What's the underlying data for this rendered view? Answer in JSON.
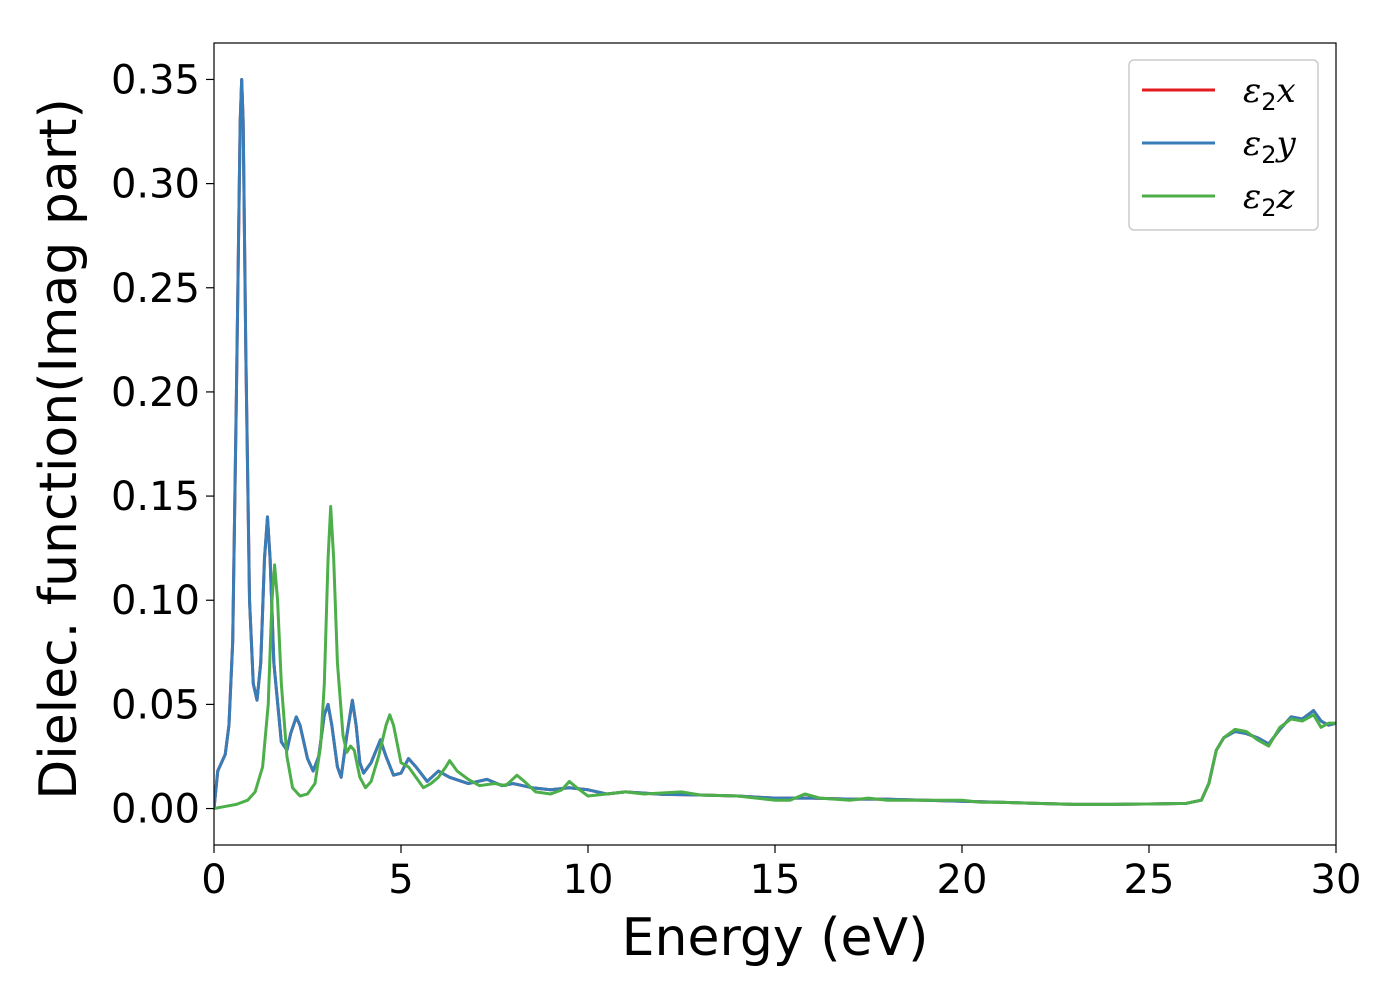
{
  "chart_data": {
    "type": "line",
    "title": "",
    "xlabel": "Energy (eV)",
    "ylabel": "Dielec. function(Imag part)",
    "xlim": [
      0,
      30
    ],
    "ylim": [
      -0.0175,
      0.3675
    ],
    "xticks": [
      0,
      5,
      10,
      15,
      20,
      25,
      30
    ],
    "xtick_labels": [
      "0",
      "5",
      "10",
      "15",
      "20",
      "25",
      "30"
    ],
    "yticks": [
      0.0,
      0.05,
      0.1,
      0.15,
      0.2,
      0.25,
      0.3,
      0.35
    ],
    "ytick_labels": [
      "0.00",
      "0.05",
      "0.10",
      "0.15",
      "0.20",
      "0.25",
      "0.30",
      "0.35"
    ],
    "grid": false,
    "legend_position": "top-right",
    "series": [
      {
        "name_symbol": "ε",
        "name_sub": "2",
        "name_suffix": "x",
        "color": "#e41a1c",
        "points": [
          [
            0,
            0.0
          ],
          [
            0.1,
            0.018
          ],
          [
            0.2,
            0.022
          ],
          [
            0.3,
            0.026
          ],
          [
            0.4,
            0.04
          ],
          [
            0.5,
            0.08
          ],
          [
            0.6,
            0.2
          ],
          [
            0.7,
            0.33
          ],
          [
            0.74,
            0.35
          ],
          [
            0.78,
            0.33
          ],
          [
            0.85,
            0.22
          ],
          [
            0.95,
            0.1
          ],
          [
            1.05,
            0.06
          ],
          [
            1.15,
            0.052
          ],
          [
            1.25,
            0.07
          ],
          [
            1.35,
            0.12
          ],
          [
            1.43,
            0.14
          ],
          [
            1.5,
            0.12
          ],
          [
            1.6,
            0.07
          ],
          [
            1.8,
            0.032
          ],
          [
            1.95,
            0.028
          ],
          [
            2.05,
            0.036
          ],
          [
            2.2,
            0.044
          ],
          [
            2.3,
            0.04
          ],
          [
            2.5,
            0.024
          ],
          [
            2.65,
            0.018
          ],
          [
            2.8,
            0.025
          ],
          [
            2.95,
            0.045
          ],
          [
            3.05,
            0.05
          ],
          [
            3.15,
            0.04
          ],
          [
            3.3,
            0.02
          ],
          [
            3.4,
            0.015
          ],
          [
            3.55,
            0.035
          ],
          [
            3.7,
            0.052
          ],
          [
            3.8,
            0.04
          ],
          [
            3.9,
            0.022
          ],
          [
            4.0,
            0.017
          ],
          [
            4.2,
            0.022
          ],
          [
            4.45,
            0.033
          ],
          [
            4.6,
            0.025
          ],
          [
            4.8,
            0.016
          ],
          [
            5.0,
            0.017
          ],
          [
            5.2,
            0.024
          ],
          [
            5.4,
            0.02
          ],
          [
            5.7,
            0.013
          ],
          [
            6.0,
            0.018
          ],
          [
            6.3,
            0.015
          ],
          [
            6.8,
            0.012
          ],
          [
            7.3,
            0.014
          ],
          [
            7.7,
            0.011
          ],
          [
            8.0,
            0.012
          ],
          [
            8.5,
            0.01
          ],
          [
            9.0,
            0.009
          ],
          [
            9.5,
            0.01
          ],
          [
            10.0,
            0.009
          ],
          [
            10.5,
            0.007
          ],
          [
            11,
            0.008
          ],
          [
            12,
            0.0068
          ],
          [
            13,
            0.0065
          ],
          [
            14,
            0.006
          ],
          [
            15,
            0.005
          ],
          [
            16,
            0.005
          ],
          [
            17,
            0.0045
          ],
          [
            18,
            0.0045
          ],
          [
            19,
            0.004
          ],
          [
            20,
            0.0035
          ],
          [
            21,
            0.003
          ],
          [
            22,
            0.0025
          ],
          [
            23,
            0.002
          ],
          [
            24,
            0.002
          ],
          [
            25,
            0.0022
          ],
          [
            26,
            0.0025
          ],
          [
            26.4,
            0.004
          ],
          [
            26.6,
            0.012
          ],
          [
            26.8,
            0.028
          ],
          [
            27,
            0.034
          ],
          [
            27.3,
            0.037
          ],
          [
            27.6,
            0.036
          ],
          [
            27.9,
            0.034
          ],
          [
            28.2,
            0.031
          ],
          [
            28.5,
            0.038
          ],
          [
            28.8,
            0.044
          ],
          [
            29.1,
            0.043
          ],
          [
            29.4,
            0.047
          ],
          [
            29.6,
            0.042
          ],
          [
            29.8,
            0.04
          ],
          [
            30,
            0.041
          ]
        ]
      },
      {
        "name_symbol": "ε",
        "name_sub": "2",
        "name_suffix": "y",
        "color": "#377eb8",
        "points": [
          [
            0,
            0.0
          ],
          [
            0.1,
            0.018
          ],
          [
            0.2,
            0.022
          ],
          [
            0.3,
            0.026
          ],
          [
            0.4,
            0.04
          ],
          [
            0.5,
            0.08
          ],
          [
            0.6,
            0.2
          ],
          [
            0.7,
            0.33
          ],
          [
            0.74,
            0.35
          ],
          [
            0.78,
            0.33
          ],
          [
            0.85,
            0.22
          ],
          [
            0.95,
            0.1
          ],
          [
            1.05,
            0.06
          ],
          [
            1.15,
            0.052
          ],
          [
            1.25,
            0.07
          ],
          [
            1.35,
            0.12
          ],
          [
            1.43,
            0.14
          ],
          [
            1.5,
            0.12
          ],
          [
            1.6,
            0.07
          ],
          [
            1.8,
            0.032
          ],
          [
            1.95,
            0.028
          ],
          [
            2.05,
            0.036
          ],
          [
            2.2,
            0.044
          ],
          [
            2.3,
            0.04
          ],
          [
            2.5,
            0.024
          ],
          [
            2.65,
            0.018
          ],
          [
            2.8,
            0.025
          ],
          [
            2.95,
            0.045
          ],
          [
            3.05,
            0.05
          ],
          [
            3.15,
            0.04
          ],
          [
            3.3,
            0.02
          ],
          [
            3.4,
            0.015
          ],
          [
            3.55,
            0.035
          ],
          [
            3.7,
            0.052
          ],
          [
            3.8,
            0.04
          ],
          [
            3.9,
            0.022
          ],
          [
            4.0,
            0.017
          ],
          [
            4.2,
            0.022
          ],
          [
            4.45,
            0.033
          ],
          [
            4.6,
            0.025
          ],
          [
            4.8,
            0.016
          ],
          [
            5.0,
            0.017
          ],
          [
            5.2,
            0.024
          ],
          [
            5.4,
            0.02
          ],
          [
            5.7,
            0.013
          ],
          [
            6.0,
            0.018
          ],
          [
            6.3,
            0.015
          ],
          [
            6.8,
            0.012
          ],
          [
            7.3,
            0.014
          ],
          [
            7.7,
            0.011
          ],
          [
            8.0,
            0.012
          ],
          [
            8.5,
            0.01
          ],
          [
            9.0,
            0.009
          ],
          [
            9.5,
            0.01
          ],
          [
            10.0,
            0.009
          ],
          [
            10.5,
            0.007
          ],
          [
            11,
            0.008
          ],
          [
            12,
            0.0068
          ],
          [
            13,
            0.0065
          ],
          [
            14,
            0.006
          ],
          [
            15,
            0.005
          ],
          [
            16,
            0.005
          ],
          [
            17,
            0.0045
          ],
          [
            18,
            0.0045
          ],
          [
            19,
            0.004
          ],
          [
            20,
            0.0035
          ],
          [
            21,
            0.003
          ],
          [
            22,
            0.0025
          ],
          [
            23,
            0.002
          ],
          [
            24,
            0.002
          ],
          [
            25,
            0.0022
          ],
          [
            26,
            0.0025
          ],
          [
            26.4,
            0.004
          ],
          [
            26.6,
            0.012
          ],
          [
            26.8,
            0.028
          ],
          [
            27,
            0.034
          ],
          [
            27.3,
            0.037
          ],
          [
            27.6,
            0.036
          ],
          [
            27.9,
            0.034
          ],
          [
            28.2,
            0.031
          ],
          [
            28.5,
            0.038
          ],
          [
            28.8,
            0.044
          ],
          [
            29.1,
            0.043
          ],
          [
            29.4,
            0.047
          ],
          [
            29.6,
            0.042
          ],
          [
            29.8,
            0.04
          ],
          [
            30,
            0.041
          ]
        ]
      },
      {
        "name_symbol": "ε",
        "name_sub": "2",
        "name_suffix": "z",
        "color": "#4daf4a",
        "points": [
          [
            0,
            0.0
          ],
          [
            0.3,
            0.001
          ],
          [
            0.6,
            0.002
          ],
          [
            0.9,
            0.004
          ],
          [
            1.1,
            0.008
          ],
          [
            1.3,
            0.02
          ],
          [
            1.45,
            0.05
          ],
          [
            1.55,
            0.1
          ],
          [
            1.62,
            0.117
          ],
          [
            1.7,
            0.1
          ],
          [
            1.8,
            0.06
          ],
          [
            1.95,
            0.025
          ],
          [
            2.1,
            0.01
          ],
          [
            2.3,
            0.006
          ],
          [
            2.5,
            0.007
          ],
          [
            2.7,
            0.012
          ],
          [
            2.85,
            0.03
          ],
          [
            2.95,
            0.06
          ],
          [
            3.05,
            0.12
          ],
          [
            3.12,
            0.145
          ],
          [
            3.2,
            0.12
          ],
          [
            3.3,
            0.07
          ],
          [
            3.45,
            0.035
          ],
          [
            3.55,
            0.027
          ],
          [
            3.65,
            0.03
          ],
          [
            3.75,
            0.028
          ],
          [
            3.9,
            0.015
          ],
          [
            4.05,
            0.01
          ],
          [
            4.2,
            0.013
          ],
          [
            4.4,
            0.025
          ],
          [
            4.6,
            0.04
          ],
          [
            4.7,
            0.045
          ],
          [
            4.8,
            0.04
          ],
          [
            5.0,
            0.022
          ],
          [
            5.2,
            0.02
          ],
          [
            5.4,
            0.015
          ],
          [
            5.6,
            0.01
          ],
          [
            5.8,
            0.012
          ],
          [
            6.0,
            0.015
          ],
          [
            6.2,
            0.02
          ],
          [
            6.3,
            0.023
          ],
          [
            6.5,
            0.018
          ],
          [
            6.8,
            0.014
          ],
          [
            7.1,
            0.011
          ],
          [
            7.5,
            0.012
          ],
          [
            7.8,
            0.011
          ],
          [
            8.1,
            0.016
          ],
          [
            8.3,
            0.013
          ],
          [
            8.6,
            0.008
          ],
          [
            9.0,
            0.007
          ],
          [
            9.3,
            0.009
          ],
          [
            9.5,
            0.013
          ],
          [
            9.7,
            0.01
          ],
          [
            10.0,
            0.006
          ],
          [
            10.5,
            0.007
          ],
          [
            11,
            0.008
          ],
          [
            11.5,
            0.007
          ],
          [
            12.5,
            0.008
          ],
          [
            13,
            0.0065
          ],
          [
            14,
            0.006
          ],
          [
            15,
            0.004
          ],
          [
            15.4,
            0.004
          ],
          [
            15.8,
            0.007
          ],
          [
            16.2,
            0.005
          ],
          [
            17,
            0.004
          ],
          [
            17.5,
            0.005
          ],
          [
            18,
            0.004
          ],
          [
            19,
            0.004
          ],
          [
            20,
            0.004
          ],
          [
            20.5,
            0.003
          ],
          [
            21,
            0.003
          ],
          [
            22,
            0.0025
          ],
          [
            23,
            0.002
          ],
          [
            24,
            0.002
          ],
          [
            25,
            0.0022
          ],
          [
            26,
            0.0025
          ],
          [
            26.4,
            0.004
          ],
          [
            26.6,
            0.012
          ],
          [
            26.8,
            0.028
          ],
          [
            27,
            0.034
          ],
          [
            27.3,
            0.038
          ],
          [
            27.6,
            0.037
          ],
          [
            27.9,
            0.033
          ],
          [
            28.2,
            0.03
          ],
          [
            28.5,
            0.039
          ],
          [
            28.8,
            0.043
          ],
          [
            29.1,
            0.042
          ],
          [
            29.4,
            0.045
          ],
          [
            29.6,
            0.039
          ],
          [
            29.8,
            0.041
          ],
          [
            30,
            0.041
          ]
        ]
      }
    ]
  }
}
